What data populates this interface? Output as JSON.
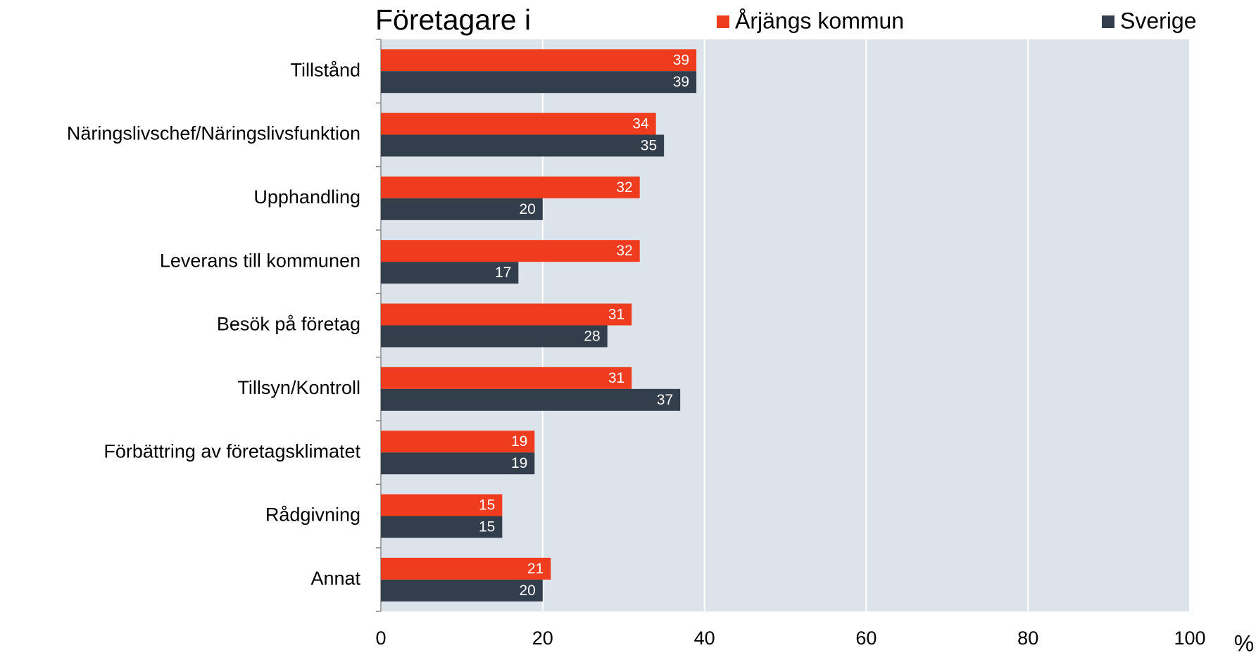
{
  "chart_data": {
    "type": "hbar",
    "title": "Företagare i",
    "categories": [
      "Tillstånd",
      "Näringslivschef/Näringslivsfunktion",
      "Upphandling",
      "Leverans till kommunen",
      "Besök på företag",
      "Tillsyn/Kontroll",
      "Förbättring av företagsklimatet",
      "Rådgivning",
      "Annat"
    ],
    "series": [
      {
        "name": "Årjängs kommun",
        "color": "#f03c1e",
        "values": [
          39,
          34,
          32,
          32,
          31,
          31,
          19,
          15,
          21
        ]
      },
      {
        "name": "Sverige",
        "color": "#323e4b",
        "values": [
          39,
          35,
          20,
          17,
          28,
          37,
          19,
          15,
          20
        ]
      }
    ],
    "xlim": [
      0,
      100
    ],
    "xticks": [
      0,
      20,
      40,
      60,
      80,
      100
    ],
    "x_label": "%",
    "grid": true,
    "legend": "top"
  }
}
